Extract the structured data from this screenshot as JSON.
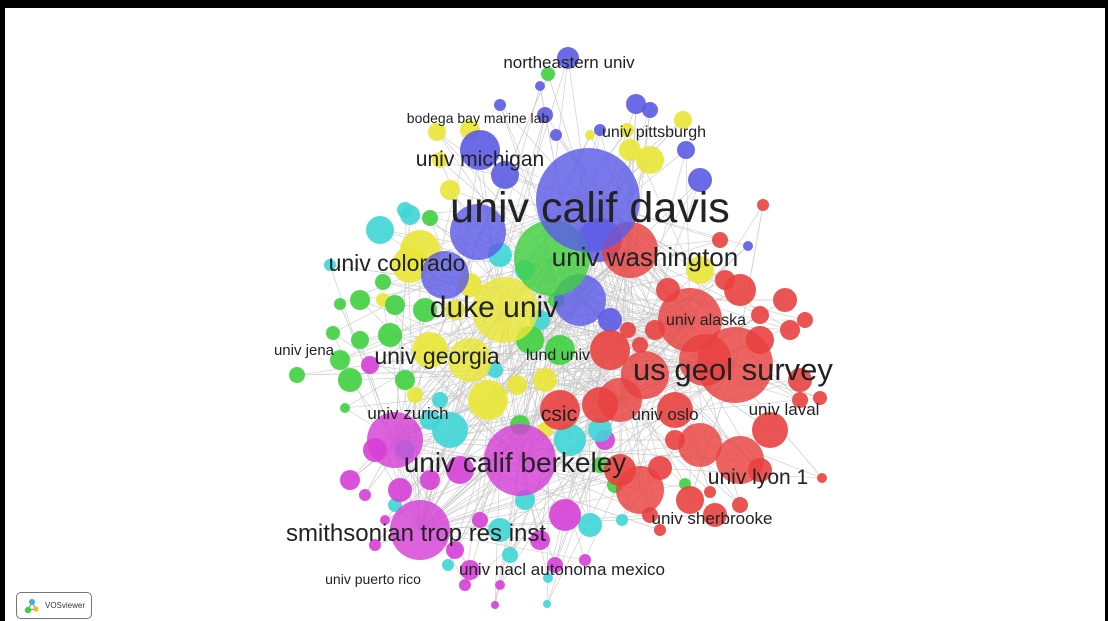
{
  "colors": {
    "red": "#e8413f",
    "blue": "#5b5be6",
    "green": "#3fd03f",
    "yellow": "#e9e635",
    "cyan": "#3fd6d6",
    "magenta": "#d63fd6",
    "edge": "#c8c8c8",
    "background": "#ffffff"
  },
  "labels": [
    {
      "id": "northeastern",
      "text": "northeastern univ"
    },
    {
      "id": "bodega",
      "text": "bodega bay marine lab"
    },
    {
      "id": "pittsburgh",
      "text": "univ pittsburgh"
    },
    {
      "id": "michigan",
      "text": "univ michigan"
    },
    {
      "id": "davis",
      "text": "univ calif davis"
    },
    {
      "id": "colorado",
      "text": "univ colorado"
    },
    {
      "id": "washington",
      "text": "univ washington"
    },
    {
      "id": "duke",
      "text": "duke univ"
    },
    {
      "id": "alaska",
      "text": "univ alaska"
    },
    {
      "id": "jena",
      "text": "univ jena"
    },
    {
      "id": "georgia",
      "text": "univ georgia"
    },
    {
      "id": "lund",
      "text": "lund univ"
    },
    {
      "id": "usgs",
      "text": "us geol survey"
    },
    {
      "id": "zurich",
      "text": "univ zurich"
    },
    {
      "id": "csic",
      "text": "csic"
    },
    {
      "id": "oslo",
      "text": "univ oslo"
    },
    {
      "id": "laval",
      "text": "univ laval"
    },
    {
      "id": "berkeley",
      "text": "univ calif berkeley"
    },
    {
      "id": "lyon",
      "text": "univ lyon 1"
    },
    {
      "id": "sherbrooke",
      "text": "univ sherbrooke"
    },
    {
      "id": "smithsonian",
      "text": "smithsonian trop res inst"
    },
    {
      "id": "puerto_rico",
      "text": "univ puerto rico"
    },
    {
      "id": "mexico",
      "text": "univ nacl autonoma mexico"
    }
  ],
  "badge": {
    "text": "VOSviewer",
    "icon": "vosviewer-logo-icon"
  }
}
